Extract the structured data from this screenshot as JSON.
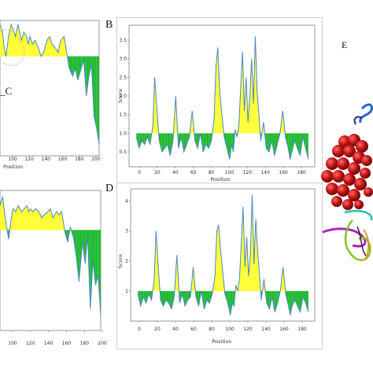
{
  "colors": {
    "above": "#ffff33",
    "below": "#22bb33",
    "line": "#4a86c5",
    "frame": "#cfcfcf"
  },
  "letters": {
    "B": "B",
    "D": "D",
    "E": "E",
    "C_partial": "_C"
  },
  "chart_data": [
    {
      "id": "A",
      "type": "area",
      "xlabel": "Position",
      "ylabel": "",
      "xticks": [
        "100",
        "120",
        "140",
        "160",
        "180",
        "200"
      ],
      "xlim": [
        85,
        201
      ],
      "ylim": [
        0,
        3.4
      ],
      "threshold": 2.5,
      "x": [
        85,
        88,
        90,
        92,
        95,
        98,
        100,
        103,
        106,
        108,
        110,
        113,
        116,
        118,
        120,
        123,
        126,
        130,
        133,
        136,
        140,
        143,
        146,
        150,
        153,
        156,
        160,
        163,
        166,
        170,
        173,
        176,
        180,
        183,
        186,
        189,
        192,
        195,
        198,
        201
      ],
      "y": [
        3.3,
        3.1,
        2.7,
        2.5,
        3.0,
        3.3,
        3.2,
        3.0,
        3.3,
        3.1,
        2.9,
        3.1,
        3.0,
        2.8,
        3.0,
        2.8,
        2.9,
        2.7,
        2.5,
        2.6,
        2.9,
        3.0,
        2.8,
        2.7,
        2.6,
        2.9,
        3.0,
        2.6,
        2.2,
        2.0,
        2.2,
        1.9,
        2.2,
        2.4,
        1.5,
        2.0,
        2.3,
        1.0,
        0.7,
        0.3
      ]
    },
    {
      "id": "B",
      "type": "area",
      "xlabel": "Position",
      "ylabel": "Score",
      "xticks": [
        "0",
        "20",
        "40",
        "60",
        "80",
        "100",
        "120",
        "140",
        "160",
        "180"
      ],
      "yticks": [
        "0.5",
        "1.0",
        "1.5",
        "2.0",
        "2.5",
        "3.0",
        "3.5"
      ],
      "xlim": [
        -8,
        195
      ],
      "ylim": [
        0.1,
        3.9
      ],
      "threshold": 1.0,
      "x": [
        0,
        3,
        6,
        9,
        12,
        15,
        18,
        20,
        22,
        25,
        28,
        31,
        34,
        37,
        40,
        43,
        46,
        49,
        52,
        55,
        58,
        61,
        64,
        67,
        70,
        73,
        76,
        79,
        82,
        85,
        87,
        89,
        91,
        93,
        96,
        99,
        102,
        104,
        106,
        108,
        110,
        112,
        114,
        116,
        118,
        120,
        122,
        124,
        126,
        128,
        130,
        132,
        134,
        136,
        139,
        142,
        145,
        148,
        151,
        154,
        157,
        160,
        163,
        166,
        168,
        170,
        173,
        176,
        179,
        182,
        185,
        188
      ],
      "y": [
        0.9,
        0.6,
        0.8,
        0.7,
        0.9,
        0.7,
        1.2,
        2.5,
        1.8,
        0.8,
        0.5,
        0.6,
        0.7,
        0.4,
        0.8,
        2.0,
        0.6,
        0.9,
        0.5,
        0.7,
        0.9,
        1.6,
        0.8,
        0.6,
        1.0,
        0.5,
        0.7,
        0.6,
        0.8,
        1.4,
        2.8,
        3.3,
        2.2,
        1.6,
        0.9,
        0.6,
        0.3,
        0.7,
        0.5,
        1.1,
        0.9,
        1.2,
        2.2,
        3.2,
        1.6,
        2.5,
        1.3,
        2.0,
        3.0,
        1.8,
        3.6,
        2.1,
        1.5,
        0.8,
        1.3,
        0.6,
        0.5,
        0.8,
        0.4,
        0.7,
        1.0,
        1.6,
        0.9,
        0.6,
        0.3,
        0.5,
        0.8,
        0.6,
        0.4,
        0.9,
        0.6,
        0.3
      ]
    },
    {
      "id": "C",
      "type": "area",
      "xlabel": "",
      "ylabel": "",
      "xticks": [
        "100",
        "120",
        "140",
        "160",
        "180",
        "200"
      ],
      "xlim": [
        85,
        201
      ],
      "ylim": [
        -2.8,
        1.8
      ],
      "threshold": 0.5,
      "x": [
        85,
        88,
        90,
        92,
        95,
        98,
        100,
        103,
        106,
        108,
        110,
        113,
        116,
        118,
        120,
        123,
        126,
        130,
        133,
        136,
        140,
        143,
        146,
        150,
        153,
        156,
        160,
        163,
        166,
        170,
        173,
        176,
        180,
        183,
        186,
        189,
        192,
        195,
        198,
        201
      ],
      "y": [
        1.3,
        1.6,
        1.1,
        0.7,
        0.2,
        0.9,
        1.2,
        1.1,
        1.3,
        1.2,
        1.1,
        1.2,
        1.3,
        1.1,
        1.2,
        1.1,
        1.2,
        1.1,
        0.9,
        1.0,
        1.1,
        1.2,
        0.9,
        1.1,
        1.0,
        1.1,
        0.4,
        0.1,
        0.6,
        0.2,
        -0.4,
        -1.2,
        0.1,
        -0.6,
        0.3,
        -2.1,
        -0.5,
        -1.3,
        -1.0,
        -2.3
      ]
    },
    {
      "id": "D",
      "type": "area",
      "xlabel": "Position",
      "ylabel": "Score",
      "xticks": [
        "0",
        "20",
        "40",
        "60",
        "80",
        "100",
        "120",
        "140",
        "160",
        "180"
      ],
      "yticks": [
        "1",
        "2",
        "3",
        "4"
      ],
      "xlim": [
        -8,
        195
      ],
      "ylim": [
        0,
        4.4
      ],
      "threshold": 1.0,
      "x": [
        0,
        3,
        6,
        9,
        12,
        15,
        18,
        20,
        22,
        25,
        28,
        31,
        34,
        37,
        40,
        43,
        46,
        49,
        52,
        55,
        58,
        61,
        64,
        67,
        70,
        73,
        76,
        79,
        82,
        85,
        87,
        89,
        91,
        93,
        96,
        99,
        102,
        104,
        106,
        108,
        110,
        112,
        114,
        116,
        118,
        120,
        122,
        124,
        126,
        128,
        130,
        132,
        134,
        136,
        139,
        142,
        145,
        148,
        151,
        154,
        157,
        160,
        163,
        166,
        168,
        170,
        173,
        176,
        179,
        182,
        185,
        188
      ],
      "y": [
        0.9,
        0.5,
        0.8,
        0.6,
        0.9,
        0.7,
        1.4,
        3.0,
        2.0,
        0.7,
        0.5,
        0.7,
        0.6,
        0.4,
        0.8,
        2.2,
        0.6,
        0.9,
        0.5,
        0.7,
        0.8,
        1.8,
        0.8,
        0.5,
        1.0,
        0.4,
        0.7,
        0.6,
        0.9,
        1.5,
        3.0,
        3.2,
        2.4,
        1.8,
        0.9,
        0.6,
        0.2,
        0.6,
        0.5,
        1.2,
        1.0,
        1.4,
        2.6,
        3.8,
        1.8,
        2.8,
        1.5,
        2.2,
        4.2,
        1.9,
        3.4,
        2.3,
        1.6,
        0.7,
        1.4,
        0.6,
        0.4,
        0.8,
        0.3,
        0.6,
        1.0,
        1.8,
        0.9,
        0.5,
        0.2,
        0.5,
        0.7,
        0.5,
        0.3,
        0.8,
        0.6,
        0.3
      ]
    }
  ]
}
